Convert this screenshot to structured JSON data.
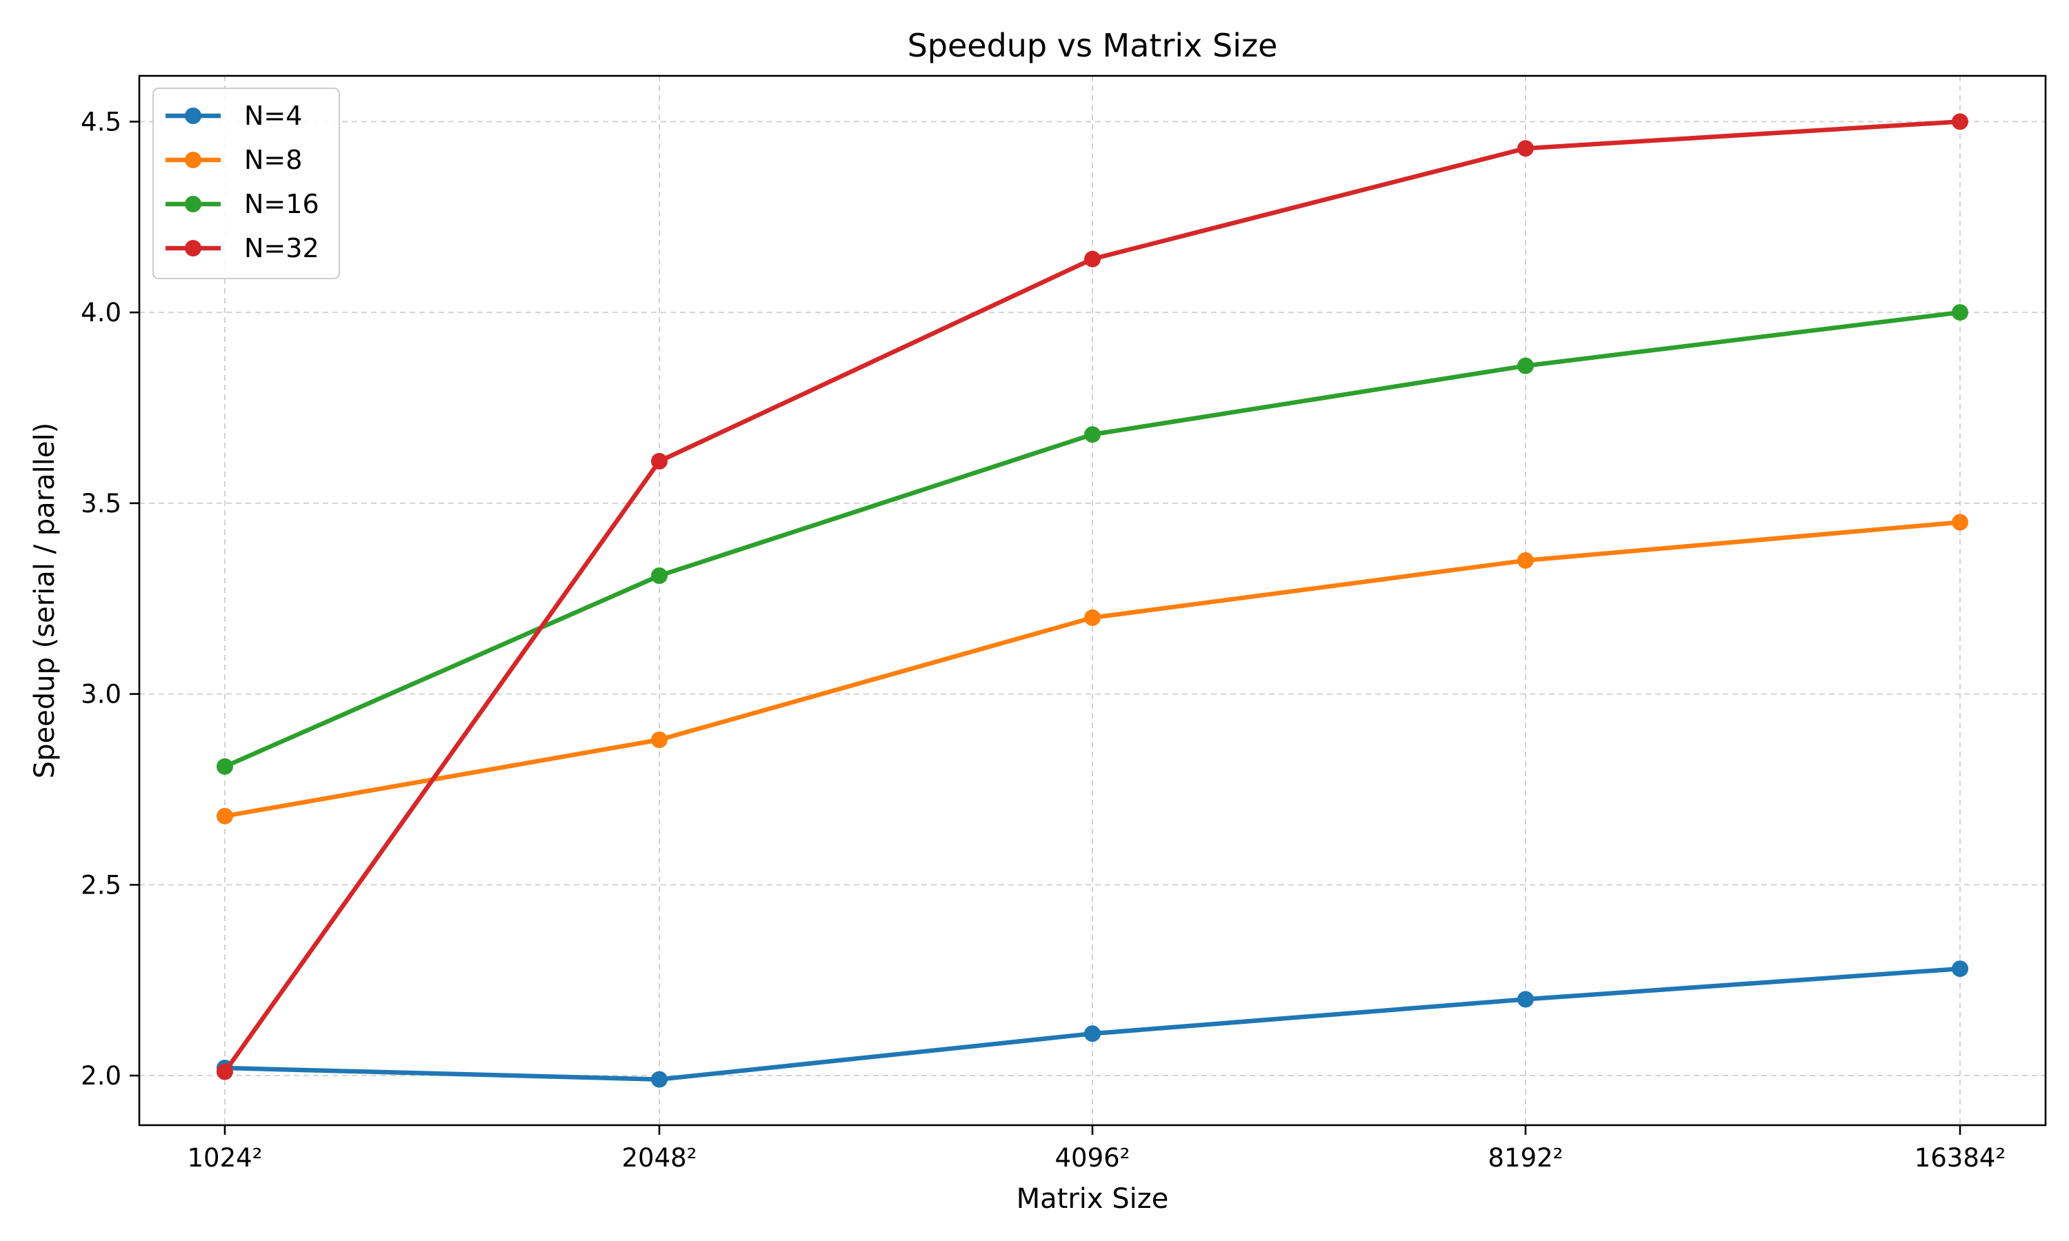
{
  "chart_data": {
    "type": "line",
    "title": "Speedup vs Matrix Size",
    "xlabel": "Matrix Size",
    "ylabel": "Speedup (serial / parallel)",
    "categories": [
      "1024²",
      "2048²",
      "4096²",
      "8192²",
      "16384²"
    ],
    "ylim": [
      1.87,
      4.62
    ],
    "yticks": [
      2.0,
      2.5,
      3.0,
      3.5,
      4.0,
      4.5
    ],
    "ytick_labels": [
      "2.0",
      "2.5",
      "3.0",
      "3.5",
      "4.0",
      "4.5"
    ],
    "grid": true,
    "legend_position": "top-left",
    "series": [
      {
        "name": "N=4",
        "color": "#1f77b4",
        "values": [
          2.02,
          1.99,
          2.11,
          2.2,
          2.28
        ]
      },
      {
        "name": "N=8",
        "color": "#ff7f0e",
        "values": [
          2.68,
          2.88,
          3.2,
          3.35,
          3.45
        ]
      },
      {
        "name": "N=16",
        "color": "#2ca02c",
        "values": [
          2.81,
          3.31,
          3.68,
          3.86,
          4.0
        ]
      },
      {
        "name": "N=32",
        "color": "#d62728",
        "values": [
          2.01,
          3.61,
          4.14,
          4.43,
          4.5
        ]
      }
    ]
  }
}
